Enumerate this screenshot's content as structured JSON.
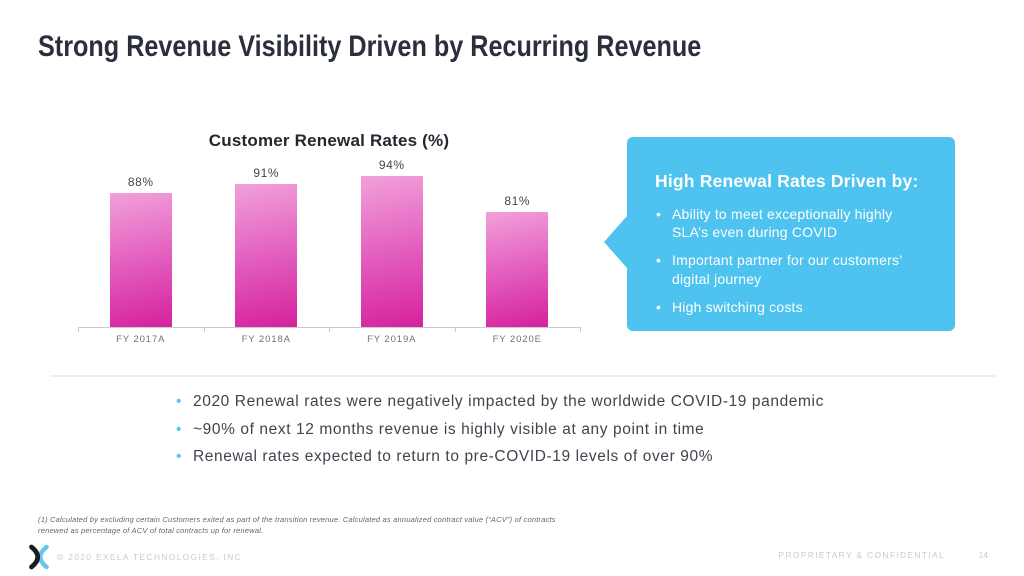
{
  "slide": {
    "title": "Strong Revenue Visibility Driven by Recurring Revenue"
  },
  "chart_data": {
    "type": "bar",
    "title": "Customer Renewal Rates (%)",
    "categories": [
      "FY 2017A",
      "FY 2018A",
      "FY 2019A",
      "FY 2020E"
    ],
    "values": [
      88,
      91,
      94,
      81
    ],
    "value_labels": [
      "88%",
      "91%",
      "94%",
      "81%"
    ],
    "xlabel": "",
    "ylabel": "",
    "ylim": [
      0,
      100
    ],
    "grid": false,
    "legend": "none",
    "bar_color_top": "#F2A0DA",
    "bar_color_bottom": "#D6219D"
  },
  "callout": {
    "heading": "High Renewal Rates Driven by:",
    "bullets": [
      "Ability to meet exceptionally highly SLA’s even during COVID",
      "Important partner for our customers’ digital journey",
      "High switching costs"
    ],
    "background_color": "#4EC3EF",
    "text_color": "#FFFFFF"
  },
  "takeaways": {
    "bullet_color": "#55C6F2",
    "items": [
      "2020 Renewal rates were negatively impacted by the worldwide COVID-19 pandemic",
      "~90% of next 12 months revenue is highly visible at any point in time",
      "Renewal rates expected to return to pre-COVID-19 levels of over 90%"
    ]
  },
  "footnote": "(1) Calculated by excluding certain Customers exited as part of the transition revenue. Calculated as annualized contract value (“ACV”) of contracts renewed as percentage of ACV of total contracts up for renewal.",
  "footer": {
    "logo": "exela-logo",
    "copyright": "© 2020 EXELA TECHNOLOGIES, INC",
    "confidentiality": "PROPRIETARY & CONFIDENTIAL",
    "page_number": "14"
  }
}
